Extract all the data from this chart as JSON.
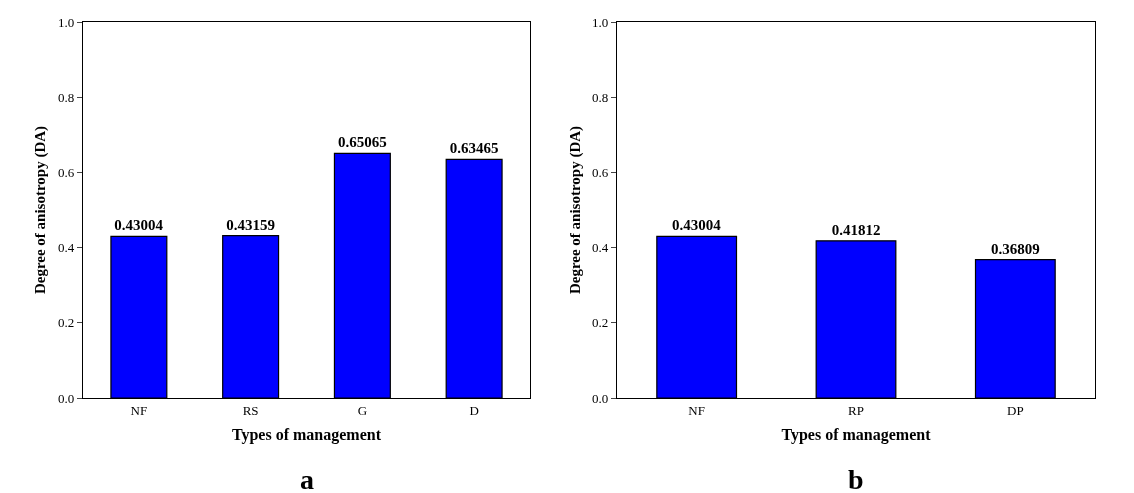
{
  "chart_data": [
    {
      "type": "bar",
      "categories": [
        "NF",
        "RS",
        "G",
        "D"
      ],
      "values": [
        0.43004,
        0.43159,
        0.65065,
        0.63465
      ],
      "color": "#0000ff",
      "xlabel": "Types of management",
      "ylabel": "Degree of anisotropy (DA)",
      "ylim": [
        0,
        1
      ],
      "yticks": [
        {
          "value": 0,
          "label": "0.0"
        },
        {
          "value": 0.2,
          "label": "0.2"
        },
        {
          "value": 0.4,
          "label": "0.4"
        },
        {
          "value": 0.6,
          "label": "0.6"
        },
        {
          "value": 0.8,
          "label": "0.8"
        },
        {
          "value": 1,
          "label": "1.0"
        }
      ],
      "data_labels": true,
      "grid": false,
      "legend": false,
      "annotations": [
        "a"
      ]
    },
    {
      "type": "bar",
      "categories": [
        "NF",
        "RP",
        "DP"
      ],
      "values": [
        0.43004,
        0.41812,
        0.36809
      ],
      "color": "#0000ff",
      "xlabel": "Types of management",
      "ylabel": "Degree of anisotropy (DA)",
      "ylim": [
        0,
        1
      ],
      "yticks": [
        {
          "value": 0,
          "label": "0.0"
        },
        {
          "value": 0.2,
          "label": "0.2"
        },
        {
          "value": 0.4,
          "label": "0.4"
        },
        {
          "value": 0.6,
          "label": "0.6"
        },
        {
          "value": 0.8,
          "label": "0.8"
        },
        {
          "value": 1,
          "label": "1.0"
        }
      ],
      "data_labels": true,
      "grid": false,
      "legend": false,
      "annotations": [
        "b"
      ]
    }
  ]
}
